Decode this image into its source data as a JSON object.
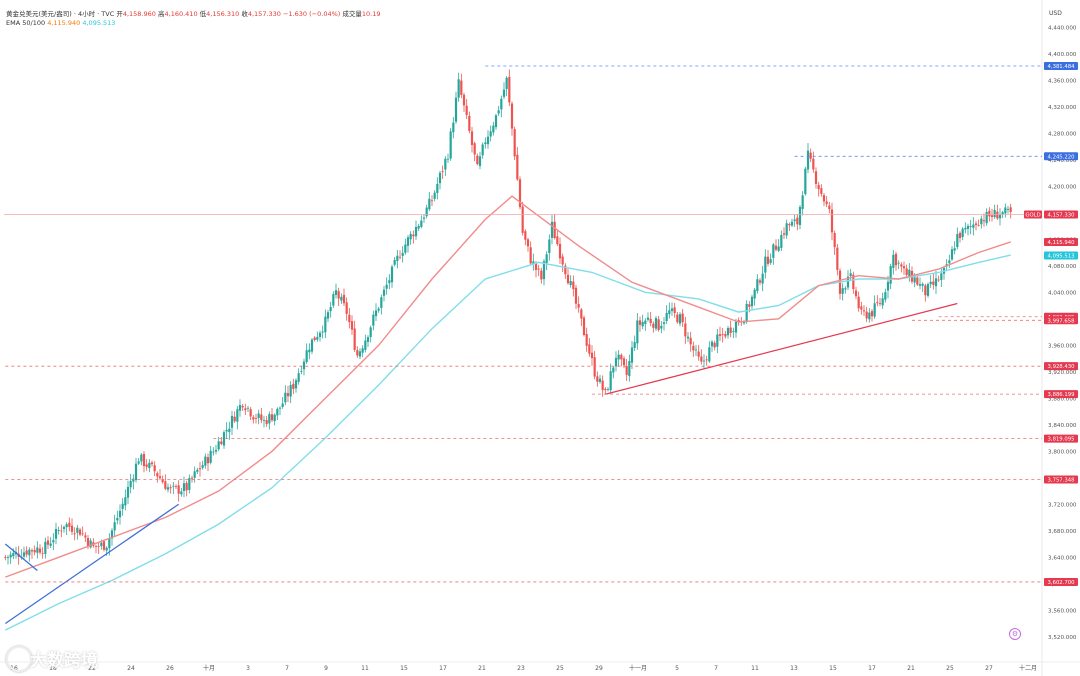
{
  "header": {
    "line1_title": "黄金兑美元(美元/盎司) · 4小时 · TVC",
    "open_label": "开",
    "open_value": "4,158.960",
    "high_label": "高",
    "high_value": "4,160.410",
    "low_label": "低",
    "low_value": "4,156.310",
    "close_label": "收",
    "close_value": "4,157.330",
    "change_value": "−1.630 (−0.04%)",
    "volume_label": "成交量",
    "volume_value": "10.19",
    "line2_label": "EMA 50/100",
    "ema50_value": "4,115.940",
    "ema100_value": "4,095.513"
  },
  "currency_label": "USD",
  "watermark": "大数跨境",
  "colors": {
    "up": "#26a69a",
    "down": "#ef5350",
    "ema50": "#f28b8b",
    "ema100": "#80deea",
    "resistance": "#5b8def",
    "support_dash": "#e57373",
    "trendline_red": "#e53950",
    "trendline_blue": "#3f6fd8"
  },
  "chart_data": {
    "type": "candlestick",
    "symbol_tag": "GOLD",
    "ylim": [
      3500,
      4460
    ],
    "y_ticks": [
      "4,440.000",
      "4,400.000",
      "4,360.000",
      "4,320.000",
      "4,280.000",
      "4,240.000",
      "4,200.000",
      "4,160.000",
      "4,120.000",
      "4,080.000",
      "4,040.000",
      "4,000.000",
      "3,960.000",
      "3,920.000",
      "3,880.000",
      "3,840.000",
      "3,800.000",
      "3,760.000",
      "3,720.000",
      "3,680.000",
      "3,640.000",
      "3,600.000",
      "3,560.000",
      "3,520.000"
    ],
    "x_ticks": [
      "16",
      "18",
      "22",
      "24",
      "26",
      "十月",
      "3",
      "7",
      "9",
      "11",
      "15",
      "17",
      "21",
      "23",
      "25",
      "29",
      "十一月",
      "5",
      "7",
      "11",
      "13",
      "15",
      "17",
      "21",
      "25",
      "27",
      "十二月"
    ],
    "close_path": [
      [
        0,
        3640
      ],
      [
        8,
        3650
      ],
      [
        15,
        3655
      ],
      [
        22,
        3690
      ],
      [
        28,
        3680
      ],
      [
        33,
        3655
      ],
      [
        38,
        3660
      ],
      [
        44,
        3720
      ],
      [
        50,
        3790
      ],
      [
        56,
        3770
      ],
      [
        62,
        3740
      ],
      [
        68,
        3745
      ],
      [
        72,
        3770
      ],
      [
        78,
        3800
      ],
      [
        84,
        3840
      ],
      [
        89,
        3875
      ],
      [
        93,
        3855
      ],
      [
        97,
        3845
      ],
      [
        102,
        3860
      ],
      [
        108,
        3900
      ],
      [
        114,
        3960
      ],
      [
        120,
        3995
      ],
      [
        124,
        4040
      ],
      [
        128,
        4010
      ],
      [
        132,
        3945
      ],
      [
        135,
        3970
      ],
      [
        140,
        4020
      ],
      [
        148,
        4100
      ],
      [
        156,
        4150
      ],
      [
        160,
        4180
      ],
      [
        166,
        4250
      ],
      [
        170,
        4355
      ],
      [
        173,
        4300
      ],
      [
        177,
        4225
      ],
      [
        180,
        4270
      ],
      [
        184,
        4305
      ],
      [
        188,
        4360
      ],
      [
        191,
        4250
      ],
      [
        194,
        4130
      ],
      [
        197,
        4090
      ],
      [
        201,
        4060
      ],
      [
        205,
        4140
      ],
      [
        208,
        4100
      ],
      [
        212,
        4050
      ],
      [
        217,
        3980
      ],
      [
        221,
        3920
      ],
      [
        225,
        3885
      ],
      [
        229,
        3945
      ],
      [
        233,
        3915
      ],
      [
        237,
        3990
      ],
      [
        241,
        4000
      ],
      [
        245,
        3990
      ],
      [
        249,
        4010
      ],
      [
        253,
        4000
      ],
      [
        257,
        3960
      ],
      [
        261,
        3930
      ],
      [
        265,
        3960
      ],
      [
        269,
        3975
      ],
      [
        273,
        3990
      ],
      [
        277,
        4005
      ],
      [
        281,
        4040
      ],
      [
        285,
        4085
      ],
      [
        289,
        4110
      ],
      [
        293,
        4140
      ],
      [
        297,
        4145
      ],
      [
        301,
        4245
      ],
      [
        305,
        4200
      ],
      [
        309,
        4160
      ],
      [
        313,
        4045
      ],
      [
        317,
        4060
      ],
      [
        321,
        4005
      ],
      [
        325,
        4010
      ],
      [
        329,
        4030
      ],
      [
        333,
        4095
      ],
      [
        337,
        4070
      ],
      [
        341,
        4060
      ],
      [
        345,
        4040
      ],
      [
        349,
        4055
      ],
      [
        353,
        4075
      ],
      [
        357,
        4125
      ],
      [
        361,
        4135
      ],
      [
        365,
        4150
      ],
      [
        369,
        4155
      ],
      [
        373,
        4160
      ],
      [
        377,
        4158
      ]
    ],
    "ema50_path": [
      [
        0,
        3610
      ],
      [
        20,
        3640
      ],
      [
        40,
        3670
      ],
      [
        60,
        3700
      ],
      [
        80,
        3740
      ],
      [
        100,
        3800
      ],
      [
        120,
        3880
      ],
      [
        140,
        3960
      ],
      [
        160,
        4060
      ],
      [
        180,
        4150
      ],
      [
        190,
        4185
      ],
      [
        200,
        4155
      ],
      [
        215,
        4110
      ],
      [
        235,
        4055
      ],
      [
        255,
        4025
      ],
      [
        275,
        3995
      ],
      [
        290,
        4000
      ],
      [
        305,
        4050
      ],
      [
        320,
        4065
      ],
      [
        335,
        4060
      ],
      [
        350,
        4075
      ],
      [
        365,
        4100
      ],
      [
        377,
        4116
      ]
    ],
    "ema100_path": [
      [
        0,
        3530
      ],
      [
        20,
        3570
      ],
      [
        40,
        3605
      ],
      [
        60,
        3645
      ],
      [
        80,
        3690
      ],
      [
        100,
        3745
      ],
      [
        120,
        3820
      ],
      [
        140,
        3900
      ],
      [
        160,
        3985
      ],
      [
        180,
        4060
      ],
      [
        200,
        4085
      ],
      [
        220,
        4070
      ],
      [
        240,
        4040
      ],
      [
        260,
        4030
      ],
      [
        275,
        4010
      ],
      [
        290,
        4020
      ],
      [
        305,
        4050
      ],
      [
        320,
        4060
      ],
      [
        335,
        4060
      ],
      [
        350,
        4070
      ],
      [
        365,
        4085
      ],
      [
        377,
        4096
      ]
    ],
    "horizontal_levels": [
      {
        "value": 4381.484,
        "label": "4,381.484",
        "style": "resistance"
      },
      {
        "value": 4245.22,
        "label": "4,245.220",
        "style": "resistance"
      },
      {
        "value": 4157.33,
        "label": "4,157.330",
        "style": "last_price"
      },
      {
        "value": 4115.94,
        "label": "4,115.940",
        "style": "ema50"
      },
      {
        "value": 4095.513,
        "label": "4,095.513",
        "style": "ema100"
      },
      {
        "value": 4003.005,
        "label": "4,003.005",
        "style": "support"
      },
      {
        "value": 3997.658,
        "label": "3,997.658",
        "style": "support"
      },
      {
        "value": 3928.43,
        "label": "3,928.430",
        "style": "support"
      },
      {
        "value": 3886.199,
        "label": "3,886.199",
        "style": "support"
      },
      {
        "value": 3819.095,
        "label": "3,819.095",
        "style": "support"
      },
      {
        "value": 3757.348,
        "label": "3,757.348",
        "style": "support"
      },
      {
        "value": 3602.7,
        "label": "3,602.700",
        "style": "support"
      }
    ],
    "trendlines": [
      {
        "from": [
          225,
          3886
        ],
        "to": [
          357,
          4023
        ],
        "color": "trendline_red"
      },
      {
        "from": [
          0,
          3540
        ],
        "to": [
          65,
          3720
        ],
        "color": "trendline_blue"
      },
      {
        "from": [
          0,
          3660
        ],
        "to": [
          12,
          3620
        ],
        "color": "trendline_blue"
      }
    ]
  }
}
